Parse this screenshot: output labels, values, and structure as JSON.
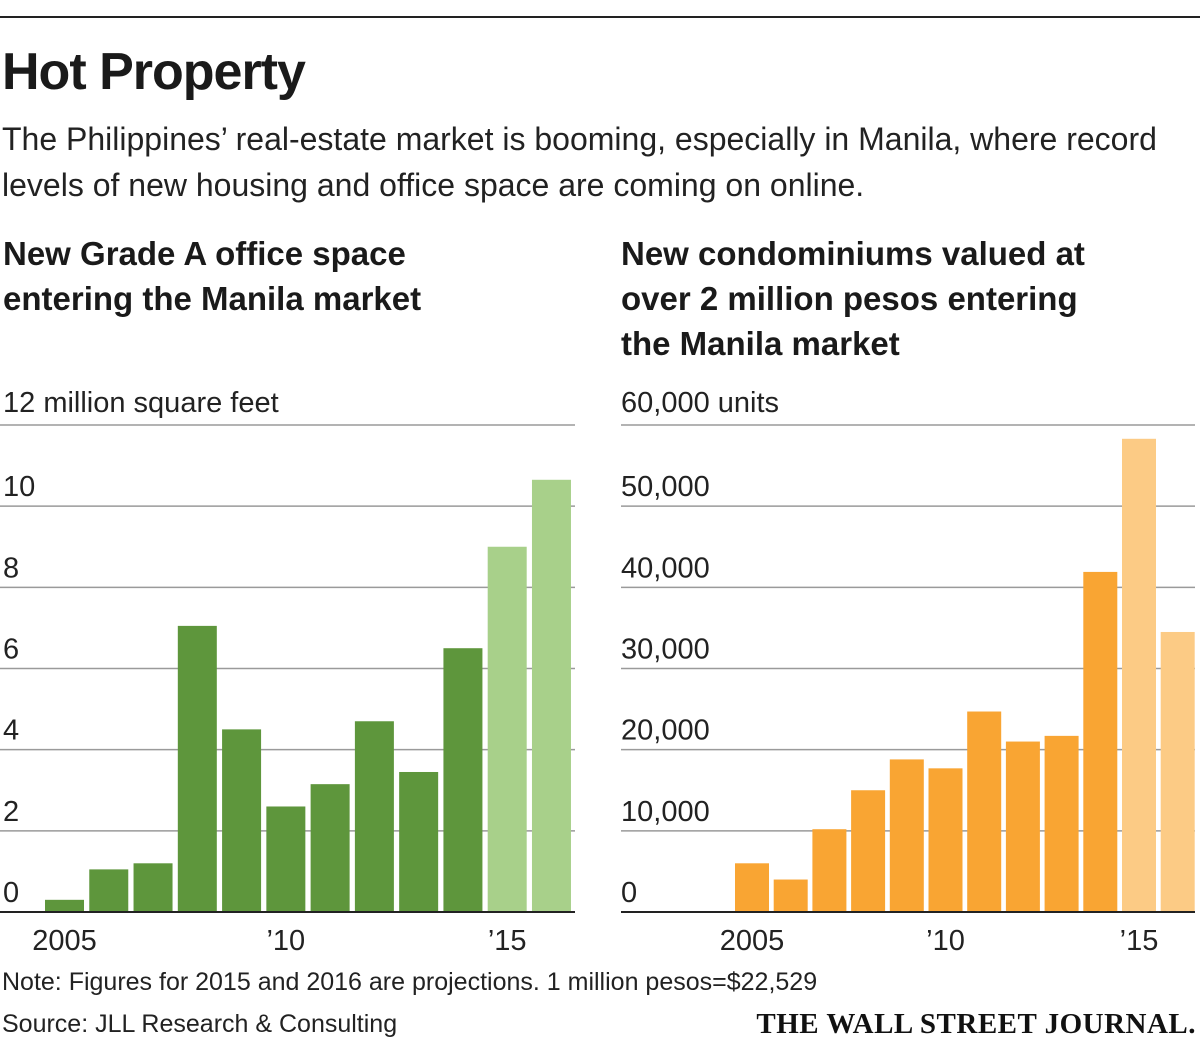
{
  "title": "Hot Property",
  "dek": "The Philippines’ real-estate market is booming, especially in Manila, where record levels of new housing and office space are coming on online.",
  "colors": {
    "office_actual": "#5e963c",
    "office_projection": "#a8d08a",
    "condo_actual": "#f9a533",
    "condo_projection": "#fccb85",
    "gridline": "#9a9a9a",
    "axis": "#222222"
  },
  "chart_data": [
    {
      "type": "bar",
      "title": "New Grade A office space entering the Manila market",
      "title_lines": [
        "New Grade A office space",
        "entering the Manila market"
      ],
      "ylabel": "12 million square feet",
      "ylim": [
        0,
        12
      ],
      "yticks": [
        0,
        2,
        4,
        6,
        8,
        10
      ],
      "ytick_labels": [
        "0",
        "2",
        "4",
        "6",
        "8",
        "10"
      ],
      "categories": [
        "2005",
        "2006",
        "2007",
        "2008",
        "2009",
        "2010",
        "2011",
        "2012",
        "2013",
        "2014",
        "2015",
        "2016"
      ],
      "values": [
        0.3,
        1.05,
        1.2,
        7.05,
        4.5,
        2.6,
        3.15,
        4.7,
        3.45,
        6.5,
        9.0,
        10.65
      ],
      "projection": [
        false,
        false,
        false,
        false,
        false,
        false,
        false,
        false,
        false,
        false,
        true,
        true
      ],
      "xtick_labels": [
        {
          "index": 0,
          "label": "2005"
        },
        {
          "index": 5,
          "label": "’10"
        },
        {
          "index": 10,
          "label": "’15"
        }
      ],
      "grid": true
    },
    {
      "type": "bar",
      "title": "New condominiums valued at over 2 million pesos entering the Manila market",
      "title_lines": [
        "New condominiums valued at",
        "over 2 million pesos entering",
        "the Manila market"
      ],
      "ylabel": "60,000 units",
      "ylim": [
        0,
        60000
      ],
      "yticks": [
        0,
        10000,
        20000,
        30000,
        40000,
        50000
      ],
      "ytick_labels": [
        "0",
        "10,000",
        "20,000",
        "30,000",
        "40,000",
        "50,000"
      ],
      "categories": [
        "2005",
        "2006",
        "2007",
        "2008",
        "2009",
        "2010",
        "2011",
        "2012",
        "2013",
        "2014",
        "2015",
        "2016"
      ],
      "values": [
        6000,
        4000,
        10200,
        15000,
        18800,
        17700,
        24700,
        21000,
        21700,
        41900,
        58300,
        34500
      ],
      "projection": [
        false,
        false,
        false,
        false,
        false,
        false,
        false,
        false,
        false,
        false,
        true,
        true
      ],
      "xtick_labels": [
        {
          "index": 0,
          "label": "2005"
        },
        {
          "index": 5,
          "label": "’10"
        },
        {
          "index": 10,
          "label": "’15"
        }
      ],
      "grid": true
    }
  ],
  "note": "Note: Figures for 2015 and 2016 are projections. 1 million pesos=$22,529",
  "source": "Source: JLL Research & Consulting",
  "publisher": "THE WALL STREET JOURNAL."
}
